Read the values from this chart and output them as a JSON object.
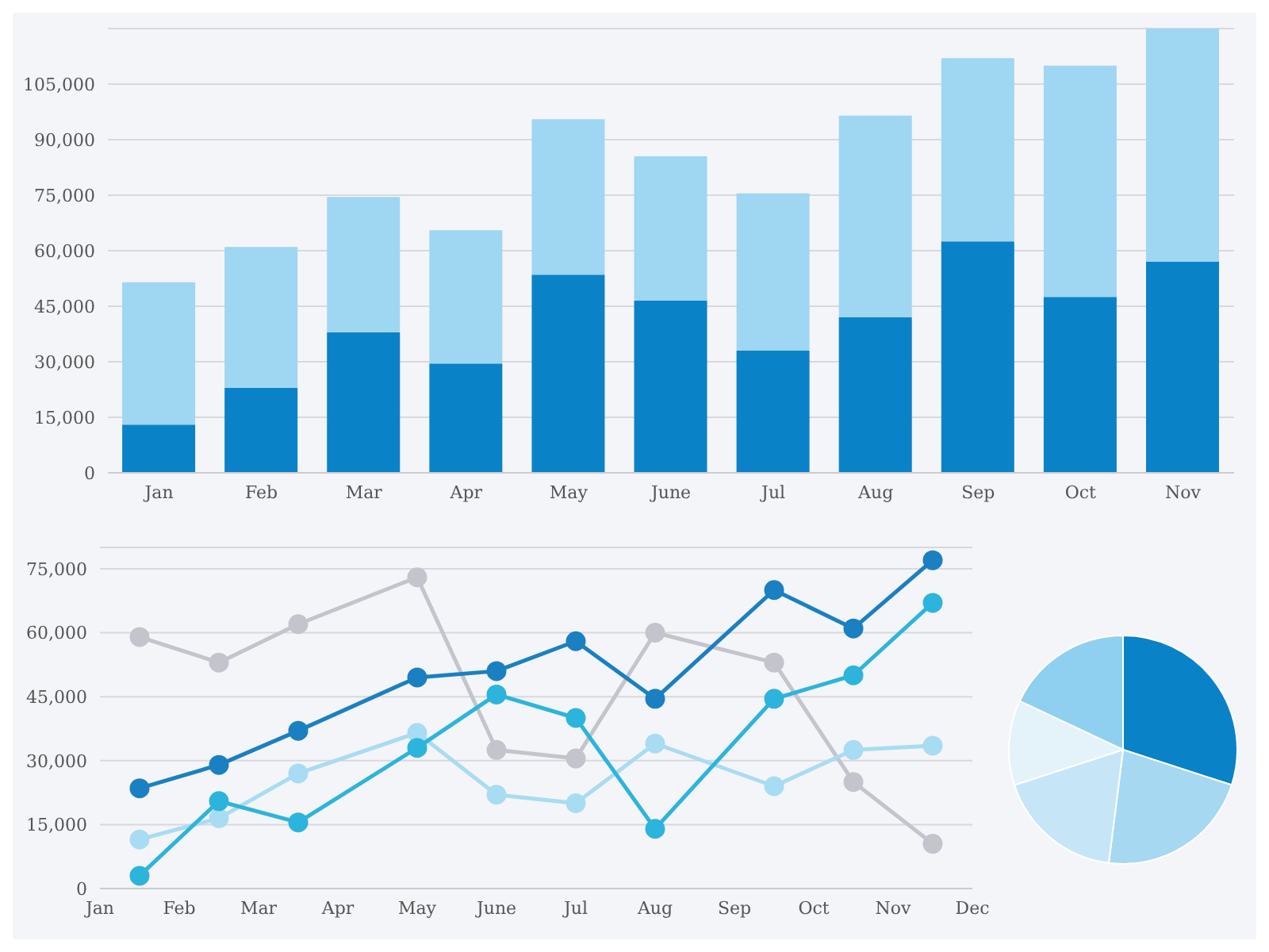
{
  "chart_data": [
    {
      "type": "bar",
      "stacked": true,
      "categories": [
        "Jan",
        "Feb",
        "Mar",
        "Apr",
        "May",
        "June",
        "Jul",
        "Aug",
        "Sep",
        "Oct",
        "Nov"
      ],
      "series": [
        {
          "color": "#0a82c8",
          "values": [
            13000,
            23000,
            38000,
            29500,
            53500,
            46500,
            33000,
            42000,
            62500,
            47500,
            57000
          ]
        },
        {
          "color": "#9fd6f2",
          "values": [
            38500,
            38000,
            36500,
            36000,
            42000,
            39000,
            42500,
            54500,
            49500,
            62500,
            63000
          ]
        }
      ],
      "ylim": [
        0,
        120000
      ],
      "yticks": [
        {
          "value": 0,
          "label": "0"
        },
        {
          "value": 15000,
          "label": "15,000"
        },
        {
          "value": 30000,
          "label": "30,000"
        },
        {
          "value": 45000,
          "label": "45,000"
        },
        {
          "value": 60000,
          "label": "60,000"
        },
        {
          "value": 75000,
          "label": "75,000"
        },
        {
          "value": 90000,
          "label": "90,000"
        },
        {
          "value": 105000,
          "label": "105,000"
        }
      ],
      "grid": "y"
    },
    {
      "type": "line",
      "categories": [
        "Jan",
        null,
        "Feb",
        null,
        "Mar",
        null,
        "Apr",
        null,
        "May",
        null,
        "June",
        null,
        "Jul",
        null,
        "Aug",
        null,
        "Sep",
        null,
        "Oct",
        null,
        "Nov",
        null,
        "Dec"
      ],
      "series": [
        {
          "color": "#c4c4cc",
          "values": [
            null,
            59000,
            null,
            53000,
            null,
            62000,
            null,
            null,
            73000,
            null,
            32500,
            null,
            30500,
            null,
            60000,
            null,
            null,
            53000,
            null,
            25000,
            null,
            10500,
            null
          ]
        },
        {
          "color": "#a8dcf2",
          "values": [
            null,
            11500,
            null,
            16500,
            null,
            27000,
            null,
            null,
            36500,
            null,
            22000,
            null,
            20000,
            null,
            34000,
            null,
            null,
            24000,
            null,
            32500,
            null,
            33500,
            null
          ]
        },
        {
          "color": "#2db4dc",
          "values": [
            null,
            3000,
            null,
            20500,
            null,
            15500,
            null,
            null,
            33000,
            null,
            45500,
            null,
            40000,
            null,
            14000,
            null,
            null,
            44500,
            null,
            50000,
            null,
            67000,
            null
          ]
        },
        {
          "color": "#1a80c2",
          "values": [
            null,
            23500,
            null,
            29000,
            null,
            37000,
            null,
            null,
            49500,
            null,
            51000,
            null,
            58000,
            null,
            44500,
            null,
            null,
            70000,
            null,
            61000,
            null,
            77000,
            null
          ]
        }
      ],
      "ylim": [
        0,
        80000
      ],
      "yticks": [
        {
          "value": 0,
          "label": "0"
        },
        {
          "value": 15000,
          "label": "15,000"
        },
        {
          "value": 30000,
          "label": "30,000"
        },
        {
          "value": 45000,
          "label": "45,000"
        },
        {
          "value": 60000,
          "label": "60,000"
        },
        {
          "value": 75000,
          "label": "75,000"
        }
      ],
      "grid": "y",
      "marker": "circle"
    },
    {
      "type": "pie",
      "categories": [
        null,
        null,
        null,
        null,
        null
      ],
      "values": [
        30,
        22,
        18,
        12,
        18
      ],
      "colors": [
        "#0a82c8",
        "#a6d8f2",
        "#c6e6f7",
        "#e4f2fa",
        "#8fd0f0"
      ]
    }
  ]
}
